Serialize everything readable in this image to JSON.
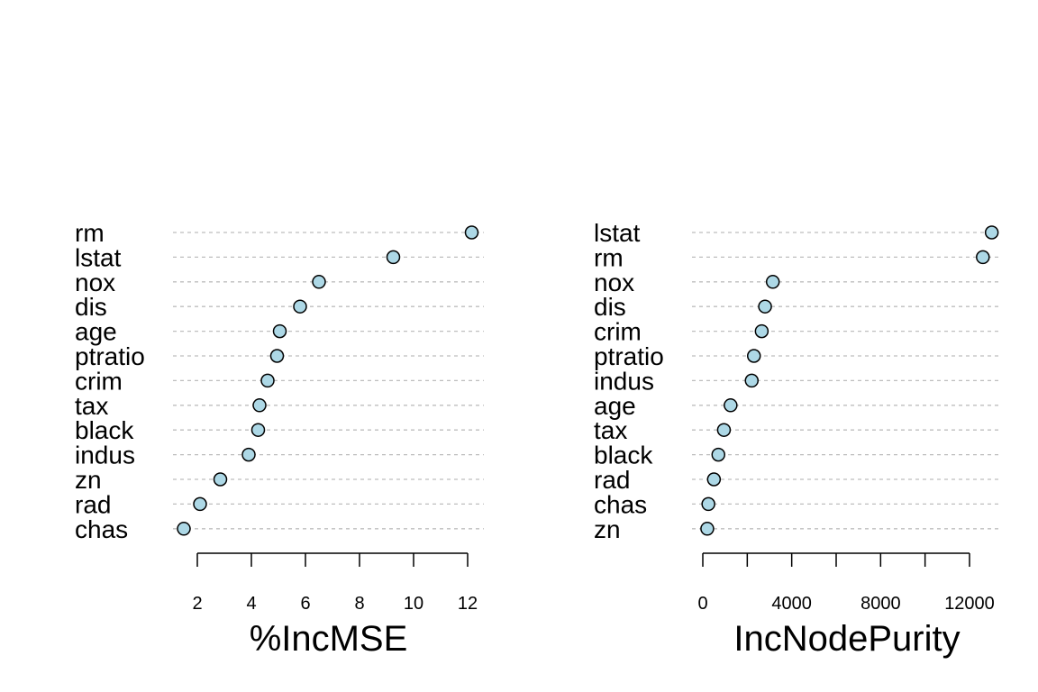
{
  "chart_data": [
    {
      "type": "scatter",
      "xlabel": "%IncMSE",
      "xticks": [
        2,
        4,
        6,
        8,
        10,
        12
      ],
      "xlim": [
        1.4,
        12.5
      ],
      "point_color": "#add8e6",
      "categories": [
        "rm",
        "lstat",
        "nox",
        "dis",
        "age",
        "ptratio",
        "crim",
        "tax",
        "black",
        "indus",
        "zn",
        "rad",
        "chas"
      ],
      "values": [
        12.15,
        9.25,
        6.5,
        5.8,
        5.05,
        4.95,
        4.6,
        4.3,
        4.25,
        3.9,
        2.85,
        2.1,
        1.5
      ]
    },
    {
      "type": "scatter",
      "xlabel": "IncNodePurity",
      "xticks": [
        0,
        4000,
        8000,
        12000
      ],
      "xlim": [
        0,
        13200
      ],
      "point_color": "#add8e6",
      "categories": [
        "lstat",
        "rm",
        "nox",
        "dis",
        "crim",
        "ptratio",
        "indus",
        "age",
        "tax",
        "black",
        "rad",
        "chas",
        "zn"
      ],
      "values": [
        13000,
        12600,
        3150,
        2800,
        2650,
        2300,
        2200,
        1250,
        950,
        700,
        500,
        250,
        200
      ]
    }
  ]
}
